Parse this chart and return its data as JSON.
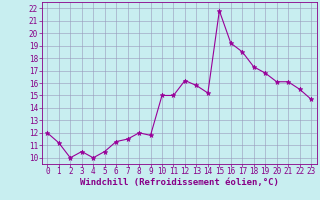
{
  "x": [
    0,
    1,
    2,
    3,
    4,
    5,
    6,
    7,
    8,
    9,
    10,
    11,
    12,
    13,
    14,
    15,
    16,
    17,
    18,
    19,
    20,
    21,
    22,
    23
  ],
  "y": [
    12.0,
    11.2,
    10.0,
    10.5,
    10.0,
    10.5,
    11.3,
    11.5,
    12.0,
    11.8,
    15.0,
    15.0,
    16.2,
    15.8,
    15.2,
    21.8,
    19.2,
    18.5,
    17.3,
    16.8,
    16.1,
    16.1,
    15.5,
    14.7
  ],
  "line_color": "#990099",
  "marker": "*",
  "marker_size": 3.5,
  "bg_color": "#c8eef0",
  "grid_color": "#9999bb",
  "xlabel": "Windchill (Refroidissement éolien,°C)",
  "xlim": [
    -0.5,
    23.5
  ],
  "ylim": [
    9.5,
    22.5
  ],
  "yticks": [
    10,
    11,
    12,
    13,
    14,
    15,
    16,
    17,
    18,
    19,
    20,
    21,
    22
  ],
  "xticks": [
    0,
    1,
    2,
    3,
    4,
    5,
    6,
    7,
    8,
    9,
    10,
    11,
    12,
    13,
    14,
    15,
    16,
    17,
    18,
    19,
    20,
    21,
    22,
    23
  ],
  "tick_fontsize": 5.5,
  "xlabel_fontsize": 6.5,
  "label_color": "#880088",
  "spine_color": "#880088",
  "linewidth": 0.8
}
